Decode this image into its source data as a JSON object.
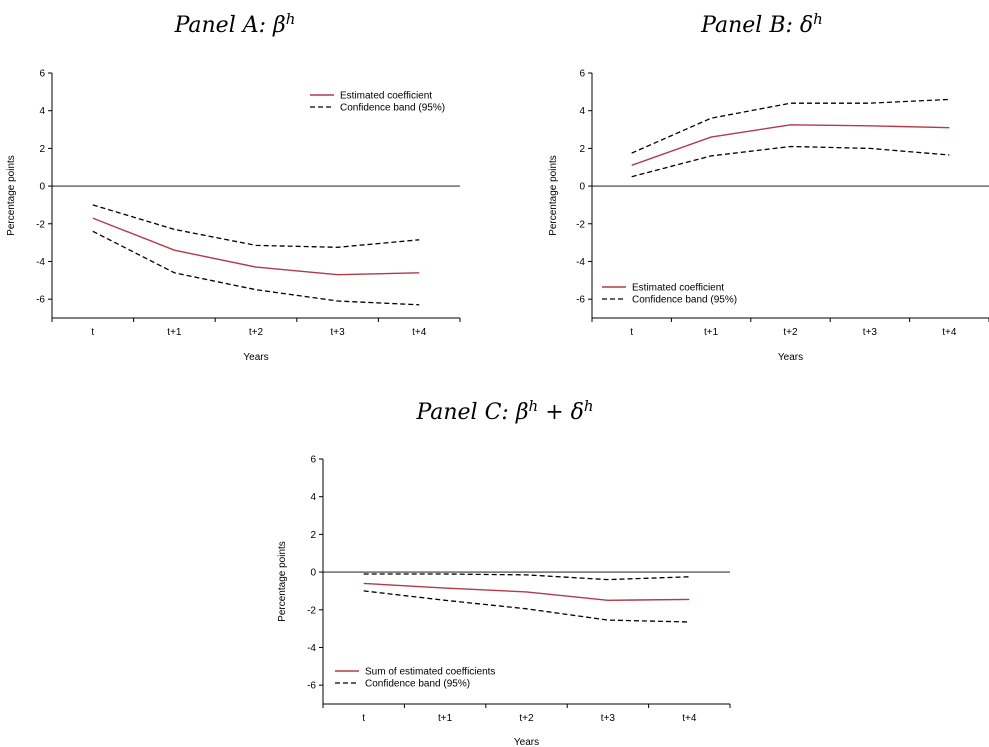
{
  "chart_data": [
    {
      "type": "line",
      "title_prefix": "Panel A: ",
      "title_symbol": "β",
      "title_sup": "h",
      "categories": [
        "t",
        "t+1",
        "t+2",
        "t+3",
        "t+4"
      ],
      "xlabel": "Years",
      "ylabel": "Percentage points",
      "ylim": [
        -7,
        6
      ],
      "yticks": [
        6,
        4,
        2,
        0,
        -2,
        -4,
        -6
      ],
      "legend_position": "top-right",
      "series": [
        {
          "name": "Estimated coefficient",
          "style": "solid",
          "color": "#b33a4a",
          "values": [
            -1.7,
            -3.4,
            -4.3,
            -4.7,
            -4.6
          ]
        },
        {
          "name": "Confidence band (95%)",
          "style": "dashed",
          "color": "#000000",
          "values": [
            -1.0,
            -2.3,
            -3.15,
            -3.25,
            -2.85
          ]
        },
        {
          "name": "",
          "style": "dashed",
          "color": "#000000",
          "values": [
            -2.4,
            -4.6,
            -5.5,
            -6.1,
            -6.3
          ]
        }
      ]
    },
    {
      "type": "line",
      "title_prefix": "Panel B: ",
      "title_symbol": "δ",
      "title_sup": "h",
      "categories": [
        "t",
        "t+1",
        "t+2",
        "t+3",
        "t+4"
      ],
      "xlabel": "Years",
      "ylabel": "Percentage points",
      "ylim": [
        -7,
        6
      ],
      "yticks": [
        6,
        4,
        2,
        0,
        -2,
        -4,
        -6
      ],
      "legend_position": "bottom-left",
      "series": [
        {
          "name": "Estimated coefficient",
          "style": "solid",
          "color": "#b33a4a",
          "values": [
            1.1,
            2.6,
            3.25,
            3.2,
            3.1
          ]
        },
        {
          "name": "Confidence band (95%)",
          "style": "dashed",
          "color": "#000000",
          "values": [
            1.75,
            3.6,
            4.4,
            4.4,
            4.6
          ]
        },
        {
          "name": "",
          "style": "dashed",
          "color": "#000000",
          "values": [
            0.5,
            1.6,
            2.1,
            2.0,
            1.65
          ]
        }
      ]
    },
    {
      "type": "line",
      "title_prefix": "Panel C: ",
      "title_symbol": "β",
      "title_sup": "h",
      "title_plus": " + ",
      "title_symbol2": "δ",
      "title_sup2": "h",
      "categories": [
        "t",
        "t+1",
        "t+2",
        "t+3",
        "t+4"
      ],
      "xlabel": "Years",
      "ylabel": "Percentage points",
      "ylim": [
        -7,
        6
      ],
      "yticks": [
        6,
        4,
        2,
        0,
        -2,
        -4,
        -6
      ],
      "legend_position": "bottom-left",
      "series": [
        {
          "name": "Sum of estimated coefficients",
          "style": "solid",
          "color": "#b33a4a",
          "values": [
            -0.6,
            -0.85,
            -1.05,
            -1.5,
            -1.45
          ]
        },
        {
          "name": "Confidence band (95%)",
          "style": "dashed",
          "color": "#000000",
          "values": [
            -0.1,
            -0.1,
            -0.15,
            -0.4,
            -0.25
          ]
        },
        {
          "name": "",
          "style": "dashed",
          "color": "#000000",
          "values": [
            -1.0,
            -1.5,
            -1.95,
            -2.55,
            -2.65
          ]
        }
      ]
    }
  ]
}
